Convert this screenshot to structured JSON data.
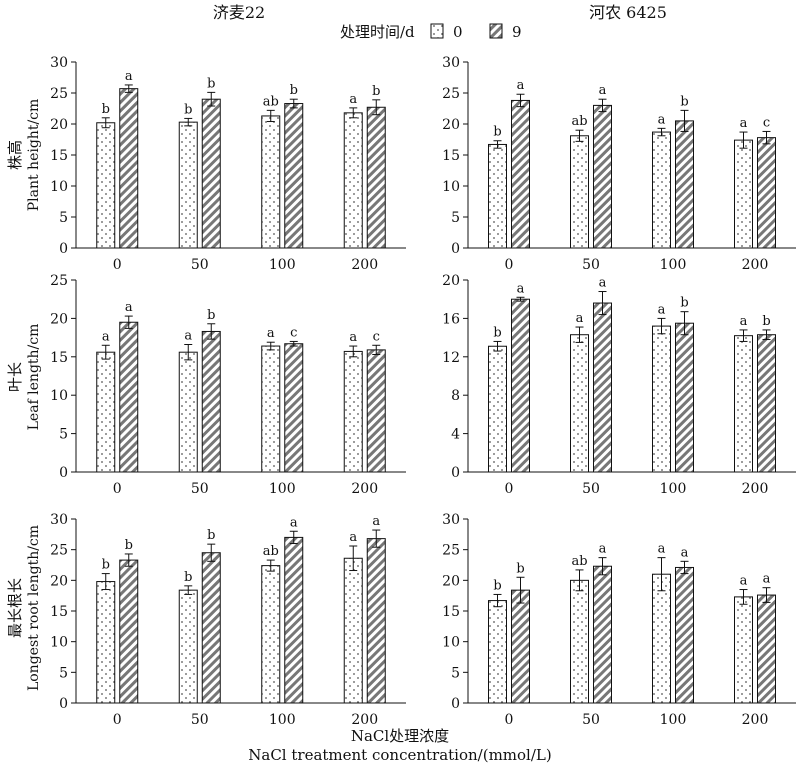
{
  "legend": {
    "label": "处理时间/d",
    "items": [
      {
        "label": "0",
        "pattern": "dots"
      },
      {
        "label": "9",
        "pattern": "hatch"
      }
    ]
  },
  "columns": [
    "济麦22",
    "河农 6425"
  ],
  "rows": [
    {
      "ylabel_cn": "株高",
      "ylabel_en": "Plant height/cm"
    },
    {
      "ylabel_cn": "叶长",
      "ylabel_en": "Leaf length/cm"
    },
    {
      "ylabel_cn": "最长根长",
      "ylabel_en": "Longest root length/cm"
    }
  ],
  "xlabel_cn": "NaCl处理浓度",
  "xlabel_en": "NaCl treatment concentration/(mmol/L)",
  "colors": {
    "bar_fill": "#ffffff",
    "hatch": "#777777",
    "dot": "#555555",
    "axis": "#111111"
  },
  "chart_data": [
    {
      "type": "bar",
      "cultivar": "济麦22",
      "trait": "株高",
      "ylim": [
        0,
        30
      ],
      "yticks": [
        0,
        5,
        10,
        15,
        20,
        25,
        30
      ],
      "categories": [
        "0",
        "50",
        "100",
        "200"
      ],
      "series": [
        {
          "name": "0",
          "values": [
            20.2,
            20.3,
            21.3,
            21.8
          ],
          "errors": [
            0.8,
            0.6,
            0.9,
            0.8
          ],
          "letters": [
            "b",
            "b",
            "ab",
            "a"
          ]
        },
        {
          "name": "9",
          "values": [
            25.7,
            24.0,
            23.3,
            22.7
          ],
          "errors": [
            0.6,
            1.1,
            0.7,
            1.2
          ],
          "letters": [
            "a",
            "b",
            "b",
            "b"
          ]
        }
      ]
    },
    {
      "type": "bar",
      "cultivar": "河农 6425",
      "trait": "株高",
      "ylim": [
        0,
        30
      ],
      "yticks": [
        0,
        5,
        10,
        15,
        20,
        25,
        30
      ],
      "categories": [
        "0",
        "50",
        "100",
        "200"
      ],
      "series": [
        {
          "name": "0",
          "values": [
            16.7,
            18.1,
            18.7,
            17.4
          ],
          "errors": [
            0.6,
            0.9,
            0.6,
            1.3
          ],
          "letters": [
            "b",
            "ab",
            "a",
            "a"
          ]
        },
        {
          "name": "9",
          "values": [
            23.8,
            23.0,
            20.5,
            17.8
          ],
          "errors": [
            1.0,
            1.0,
            1.7,
            1.0
          ],
          "letters": [
            "a",
            "a",
            "b",
            "c"
          ]
        }
      ]
    },
    {
      "type": "bar",
      "cultivar": "济麦22",
      "trait": "叶长",
      "ylim": [
        0,
        25
      ],
      "yticks": [
        0,
        5,
        10,
        15,
        20,
        25
      ],
      "categories": [
        "0",
        "50",
        "100",
        "200"
      ],
      "series": [
        {
          "name": "0",
          "values": [
            15.6,
            15.6,
            16.4,
            15.7
          ],
          "errors": [
            0.9,
            1.0,
            0.5,
            0.7
          ],
          "letters": [
            "a",
            "a",
            "a",
            "a"
          ]
        },
        {
          "name": "9",
          "values": [
            19.5,
            18.3,
            16.7,
            15.9
          ],
          "errors": [
            0.8,
            1.0,
            0.3,
            0.6
          ],
          "letters": [
            "a",
            "b",
            "c",
            "c"
          ]
        }
      ]
    },
    {
      "type": "bar",
      "cultivar": "河农 6425",
      "trait": "叶长",
      "ylim": [
        0,
        20
      ],
      "yticks": [
        0,
        4,
        8,
        12,
        16,
        20
      ],
      "categories": [
        "0",
        "50",
        "100",
        "200"
      ],
      "series": [
        {
          "name": "0",
          "values": [
            13.1,
            14.3,
            15.2,
            14.2
          ],
          "errors": [
            0.5,
            0.8,
            0.8,
            0.6
          ],
          "letters": [
            "b",
            "a",
            "a",
            "a"
          ]
        },
        {
          "name": "9",
          "values": [
            18.0,
            17.6,
            15.5,
            14.3
          ],
          "errors": [
            0.2,
            1.2,
            1.2,
            0.5
          ],
          "letters": [
            "a",
            "a",
            "b",
            "b"
          ]
        }
      ]
    },
    {
      "type": "bar",
      "cultivar": "济麦22",
      "trait": "最长根长",
      "ylim": [
        0,
        30
      ],
      "yticks": [
        0,
        5,
        10,
        15,
        20,
        25,
        30
      ],
      "categories": [
        "0",
        "50",
        "100",
        "200"
      ],
      "series": [
        {
          "name": "0",
          "values": [
            19.8,
            18.4,
            22.4,
            23.6
          ],
          "errors": [
            1.3,
            0.7,
            0.9,
            2.0
          ],
          "letters": [
            "b",
            "b",
            "ab",
            "a"
          ]
        },
        {
          "name": "9",
          "values": [
            23.3,
            24.5,
            27.0,
            26.8
          ],
          "errors": [
            1.0,
            1.4,
            1.0,
            1.4
          ],
          "letters": [
            "b",
            "b",
            "a",
            "a"
          ]
        }
      ]
    },
    {
      "type": "bar",
      "cultivar": "河农 6425",
      "trait": "最长根长",
      "ylim": [
        0,
        30
      ],
      "yticks": [
        0,
        5,
        10,
        15,
        20,
        25,
        30
      ],
      "categories": [
        "0",
        "50",
        "100",
        "200"
      ],
      "series": [
        {
          "name": "0",
          "values": [
            16.7,
            20.0,
            21.0,
            17.3
          ],
          "errors": [
            1.0,
            1.7,
            2.7,
            1.2
          ],
          "letters": [
            "b",
            "ab",
            "a",
            "a"
          ]
        },
        {
          "name": "9",
          "values": [
            18.4,
            22.3,
            22.1,
            17.6
          ],
          "errors": [
            2.1,
            1.4,
            1.0,
            1.2
          ],
          "letters": [
            "b",
            "a",
            "a",
            "a"
          ]
        }
      ]
    }
  ]
}
